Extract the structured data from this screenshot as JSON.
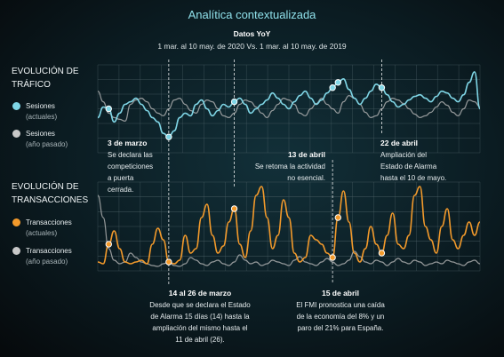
{
  "title": "Analítica contextualizada",
  "subtitle": "Datos YoY",
  "date_range": "1 mar. al 10 may. de 2020 Vs. 1 mar. al 10 may. de 2019",
  "colors": {
    "current_sessions": "#7fd6e6",
    "previous": "#b8b8b8",
    "current_transactions": "#f39a2b",
    "title": "#8fe0ea"
  },
  "sections": {
    "traffic": {
      "title_line1": "EVOLUCIÓN DE",
      "title_line2": "TRÁFICO",
      "legend_current": "Sesiones",
      "legend_current_sub": "(actuales)",
      "legend_previous": "Sesiones",
      "legend_previous_sub": "(año pasado)"
    },
    "transactions": {
      "title_line1": "EVOLUCIÓN DE",
      "title_line2": "TRANSACCIONES",
      "legend_current": "Transacciones",
      "legend_current_sub": "(actuales)",
      "legend_previous": "Transacciones",
      "legend_previous_sub": "(año pasado)"
    }
  },
  "annotations": {
    "mar3": {
      "title": "3 de marzo",
      "lines": [
        "Se declara las",
        "competiciones",
        "a puerta",
        "cerrada."
      ]
    },
    "apr13": {
      "title": "13 de abril",
      "lines": [
        "Se retoma la actividad",
        "no esencial."
      ]
    },
    "apr22": {
      "title": "22 de abril",
      "lines": [
        "Ampliación del",
        "Estado de Alarma",
        "hasta el 10 de mayo."
      ]
    },
    "mar14_26": {
      "title": "14 al 26 de marzo",
      "lines": [
        "Desde que se declara el Estado",
        "de Alarma 15 días (14) hasta la",
        "ampliación del mismo hasta el",
        "11 de abril (26)."
      ]
    },
    "apr15": {
      "title": "15 de abril",
      "lines": [
        "El FMI pronostica una caída",
        "de la economía del 8% y un",
        "paro del 21% para España."
      ]
    }
  },
  "chart_data": [
    {
      "type": "line",
      "name": "traffic",
      "x_start": "1 mar.",
      "x_end": "10 may.",
      "days": 71,
      "ylim": [
        0,
        100
      ],
      "grid": true,
      "series": [
        {
          "name": "Sesiones (actuales)",
          "values": [
            40,
            52,
            50,
            35,
            45,
            55,
            58,
            62,
            55,
            48,
            40,
            35,
            22,
            18,
            25,
            40,
            45,
            42,
            55,
            60,
            50,
            42,
            48,
            55,
            52,
            58,
            62,
            55,
            45,
            50,
            55,
            60,
            68,
            62,
            55,
            50,
            58,
            65,
            70,
            62,
            55,
            60,
            68,
            74,
            80,
            84,
            72,
            62,
            55,
            62,
            70,
            78,
            74,
            66,
            58,
            52,
            55,
            60,
            64,
            66,
            62,
            58,
            64,
            70,
            68,
            62,
            58,
            66,
            80,
            92,
            50
          ]
        },
        {
          "name": "Sesiones (año pasado)",
          "values": [
            70,
            58,
            45,
            40,
            38,
            36,
            55,
            60,
            62,
            58,
            50,
            45,
            42,
            50,
            60,
            62,
            55,
            48,
            45,
            55,
            60,
            58,
            50,
            42,
            40,
            45,
            55,
            60,
            58,
            52,
            45,
            40,
            48,
            55,
            62,
            60,
            55,
            45,
            42,
            50,
            56,
            62,
            55,
            50,
            45,
            58,
            65,
            62,
            55,
            46,
            40,
            42,
            50,
            58,
            62,
            60,
            56,
            50,
            44,
            40,
            42,
            46,
            52,
            58,
            54,
            46,
            42,
            50,
            60,
            58,
            52
          ]
        }
      ]
    },
    {
      "type": "line",
      "name": "transactions",
      "x_start": "1 mar.",
      "x_end": "10 may.",
      "days": 71,
      "ylim": [
        0,
        100
      ],
      "grid": true,
      "series": [
        {
          "name": "Transacciones (actuales)",
          "values": [
            10,
            8,
            30,
            45,
            25,
            10,
            8,
            10,
            12,
            8,
            30,
            48,
            35,
            10,
            8,
            12,
            40,
            20,
            25,
            60,
            75,
            40,
            20,
            28,
            55,
            70,
            30,
            15,
            45,
            85,
            95,
            60,
            25,
            40,
            80,
            60,
            20,
            10,
            15,
            40,
            35,
            30,
            20,
            15,
            60,
            90,
            55,
            20,
            10,
            25,
            50,
            30,
            20,
            40,
            65,
            30,
            25,
            40,
            85,
            95,
            50,
            35,
            20,
            50,
            70,
            35,
            25,
            40,
            55,
            40,
            55
          ]
        },
        {
          "name": "Transacciones (año pasado)",
          "values": [
            85,
            60,
            25,
            12,
            8,
            10,
            20,
            15,
            10,
            8,
            6,
            5,
            8,
            10,
            6,
            5,
            8,
            15,
            12,
            8,
            6,
            10,
            12,
            8,
            6,
            10,
            18,
            12,
            8,
            10,
            6,
            8,
            12,
            10,
            8,
            6,
            12,
            16,
            10,
            8,
            6,
            10,
            14,
            10,
            6,
            8,
            12,
            22,
            16,
            10,
            8,
            12,
            10,
            6,
            10,
            14,
            10,
            8,
            12,
            10,
            6,
            8,
            10,
            8,
            12,
            10,
            8,
            6,
            10,
            12,
            8
          ]
        }
      ]
    }
  ]
}
